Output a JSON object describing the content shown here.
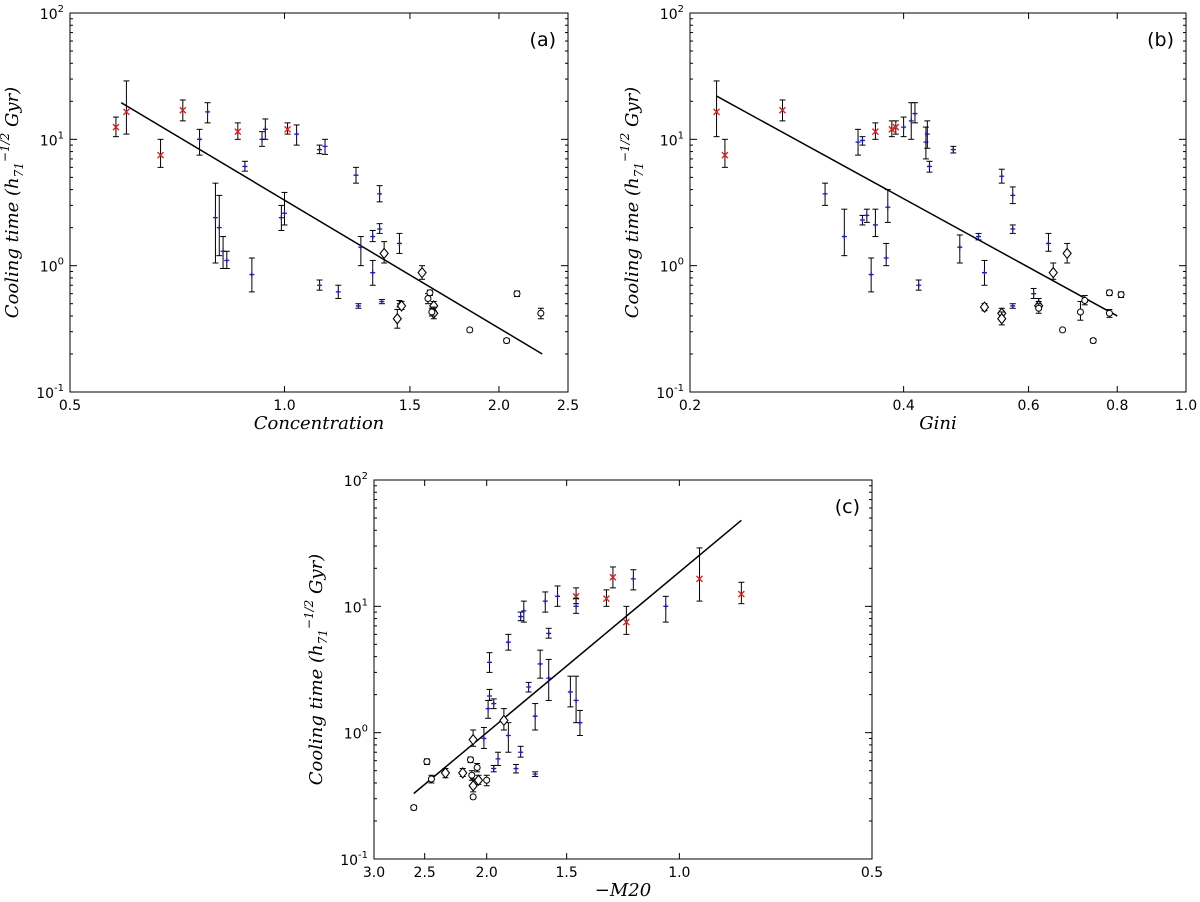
{
  "chart_data": [
    {
      "type": "scatter",
      "panel_label": "(a)",
      "xlabel": "Concentration",
      "ylabel": "Cooling time (h71^-1/2 Gyr)",
      "xscale": "log",
      "yscale": "log",
      "xlim": [
        0.5,
        2.5
      ],
      "ylim": [
        0.1,
        100
      ],
      "xticks": [
        0.5,
        1.0,
        1.5,
        2.0,
        2.5
      ],
      "xtick_labels": [
        "0.5",
        "1.0",
        "1.5",
        "2.0",
        "2.5"
      ],
      "ytick_labels": [
        "10-1",
        "100",
        "101",
        "102"
      ],
      "fit_line": [
        [
          0.59,
          19.5
        ],
        [
          2.3,
          0.2
        ]
      ],
      "series": [
        {
          "marker": "x",
          "color": "#d62728",
          "points": [
            [
              0.58,
              12.5,
              10.5,
              15
            ],
            [
              0.6,
              16.5,
              11,
              29
            ],
            [
              0.67,
              7.5,
              6,
              10
            ],
            [
              0.72,
              17,
              14,
              20.5
            ],
            [
              0.86,
              11.5,
              10,
              13.5
            ],
            [
              1.01,
              12,
              11,
              13.5
            ]
          ]
        },
        {
          "marker": "+",
          "color": "#1f1f9f",
          "points": [
            [
              0.76,
              10,
              7.5,
              12
            ],
            [
              0.78,
              16.5,
              13.5,
              19.5
            ],
            [
              0.88,
              6.1,
              5.6,
              6.7
            ],
            [
              0.93,
              10,
              8.8,
              11.5
            ],
            [
              0.94,
              12,
              10,
              14.5
            ],
            [
              1.04,
              11,
              9,
              13
            ],
            [
              1.12,
              8.3,
              7.7,
              9
            ],
            [
              1.14,
              8.8,
              7.6,
              10
            ],
            [
              1.26,
              5.2,
              4.5,
              6
            ],
            [
              1.36,
              3.7,
              3.2,
              4.3
            ],
            [
              1.33,
              1.7,
              1.55,
              1.9
            ],
            [
              1.36,
              1.95,
              1.8,
              2.15
            ],
            [
              1.45,
              1.5,
              1.25,
              1.8
            ],
            [
              0.8,
              2.4,
              1.05,
              4.5
            ],
            [
              0.81,
              2.0,
              1.2,
              3.6
            ],
            [
              0.82,
              1.3,
              0.95,
              1.7
            ],
            [
              0.83,
              1.1,
              0.95,
              1.3
            ],
            [
              0.9,
              0.85,
              0.62,
              1.15
            ],
            [
              0.99,
              2.4,
              1.9,
              3.0
            ],
            [
              1.0,
              2.6,
              2.1,
              3.8
            ],
            [
              1.12,
              0.7,
              0.64,
              0.77
            ],
            [
              1.19,
              0.62,
              0.55,
              0.7
            ],
            [
              1.27,
              0.48,
              0.46,
              0.5
            ],
            [
              1.28,
              1.4,
              1.0,
              1.7
            ],
            [
              1.33,
              0.88,
              0.7,
              1.1
            ],
            [
              1.37,
              0.52,
              0.5,
              0.54
            ],
            [
              1.45,
              0.5,
              0.47,
              0.53
            ]
          ]
        },
        {
          "marker": "diamond",
          "color": "#000000",
          "points": [
            [
              1.38,
              1.25,
              1.05,
              1.55
            ],
            [
              1.44,
              0.38,
              0.32,
              0.45
            ],
            [
              1.46,
              0.48,
              0.45,
              0.52
            ],
            [
              1.56,
              0.88,
              0.78,
              1.0
            ],
            [
              1.62,
              0.48,
              0.44,
              0.52
            ],
            [
              1.62,
              0.42,
              0.38,
              0.47
            ]
          ]
        },
        {
          "marker": "circle",
          "color": "#000000",
          "points": [
            [
              1.59,
              0.55,
              0.5,
              0.6
            ],
            [
              1.6,
              0.61,
              0.58,
              0.64
            ],
            [
              1.61,
              0.43,
              0.4,
              0.46
            ],
            [
              1.82,
              0.31,
              0.3,
              0.32
            ],
            [
              2.05,
              0.255,
              0.245,
              0.265
            ],
            [
              2.12,
              0.6,
              0.57,
              0.63
            ],
            [
              2.29,
              0.42,
              0.38,
              0.46
            ]
          ]
        }
      ]
    },
    {
      "type": "scatter",
      "panel_label": "(b)",
      "xlabel": "Gini",
      "ylabel": "Cooling time (h71^-1/2 Gyr)",
      "xscale": "log",
      "yscale": "log",
      "xlim": [
        0.2,
        1.0
      ],
      "ylim": [
        0.1,
        100
      ],
      "xticks": [
        0.2,
        0.4,
        0.6,
        0.8,
        1.0
      ],
      "xtick_labels": [
        "0.2",
        "0.4",
        "0.6",
        "0.8",
        "1.0"
      ],
      "ytick_labels": [
        "10-1",
        "100",
        "101",
        "102"
      ],
      "fit_line": [
        [
          0.218,
          22
        ],
        [
          0.8,
          0.4
        ]
      ],
      "series": [
        {
          "marker": "x",
          "color": "#d62728",
          "points": [
            [
              0.218,
              16.5,
              10.5,
              29
            ],
            [
              0.224,
              7.5,
              6,
              10
            ],
            [
              0.27,
              17,
              14,
              20.5
            ],
            [
              0.365,
              11.5,
              10,
              13.5
            ],
            [
              0.385,
              12,
              10.5,
              14
            ],
            [
              0.39,
              12.5,
              11,
              14
            ]
          ]
        },
        {
          "marker": "+",
          "color": "#1f1f9f",
          "points": [
            [
              0.31,
              3.7,
              3.0,
              4.5
            ],
            [
              0.33,
              1.7,
              1.2,
              2.8
            ],
            [
              0.345,
              9.5,
              7.5,
              12
            ],
            [
              0.35,
              2.3,
              2.1,
              2.5
            ],
            [
              0.35,
              9.8,
              9.0,
              10.5
            ],
            [
              0.355,
              2.5,
              2.2,
              2.8
            ],
            [
              0.36,
              0.85,
              0.62,
              1.15
            ],
            [
              0.365,
              2.1,
              1.7,
              2.8
            ],
            [
              0.378,
              1.15,
              1.0,
              1.5
            ],
            [
              0.38,
              2.9,
              2.2,
              4.0
            ],
            [
              0.4,
              12.5,
              10.5,
              15
            ],
            [
              0.41,
              14,
              10,
              19.5
            ],
            [
              0.415,
              16,
              13.5,
              19.5
            ],
            [
              0.42,
              0.7,
              0.64,
              0.77
            ],
            [
              0.43,
              9.5,
              7,
              12.5
            ],
            [
              0.432,
              11,
              8.5,
              14
            ],
            [
              0.435,
              6.1,
              5.5,
              6.7
            ],
            [
              0.47,
              8.3,
              7.8,
              8.8
            ],
            [
              0.48,
              1.4,
              1.05,
              1.75
            ],
            [
              0.51,
              1.7,
              1.6,
              1.8
            ],
            [
              0.52,
              0.88,
              0.7,
              1.1
            ],
            [
              0.55,
              5.1,
              4.5,
              5.8
            ],
            [
              0.57,
              3.6,
              3.1,
              4.2
            ],
            [
              0.57,
              1.95,
              1.8,
              2.1
            ],
            [
              0.57,
              0.48,
              0.46,
              0.5
            ],
            [
              0.61,
              0.6,
              0.55,
              0.66
            ],
            [
              0.62,
              0.52,
              0.49,
              0.55
            ],
            [
              0.64,
              1.5,
              1.3,
              1.8
            ]
          ]
        },
        {
          "marker": "diamond",
          "color": "#000000",
          "points": [
            [
              0.52,
              0.47,
              0.44,
              0.5
            ],
            [
              0.55,
              0.42,
              0.38,
              0.46
            ],
            [
              0.55,
              0.38,
              0.34,
              0.43
            ],
            [
              0.62,
              0.48,
              0.45,
              0.52
            ],
            [
              0.65,
              0.88,
              0.78,
              1.05
            ],
            [
              0.68,
              1.25,
              1.05,
              1.5
            ]
          ]
        },
        {
          "marker": "circle",
          "color": "#000000",
          "points": [
            [
              0.62,
              0.46,
              0.42,
              0.5
            ],
            [
              0.67,
              0.31,
              0.3,
              0.32
            ],
            [
              0.71,
              0.43,
              0.37,
              0.52
            ],
            [
              0.72,
              0.53,
              0.49,
              0.58
            ],
            [
              0.74,
              0.255,
              0.245,
              0.265
            ],
            [
              0.78,
              0.61,
              0.58,
              0.64
            ],
            [
              0.78,
              0.42,
              0.39,
              0.45
            ],
            [
              0.81,
              0.59,
              0.56,
              0.62
            ]
          ]
        }
      ]
    },
    {
      "type": "scatter",
      "panel_label": "(c)",
      "xlabel": "−M20",
      "ylabel": "Cooling time (h71^-1/2 Gyr)",
      "xscale": "log",
      "yscale": "log",
      "xlim": [
        3.0,
        0.5
      ],
      "ylim": [
        0.1,
        100
      ],
      "xticks": [
        3.0,
        2.5,
        2.0,
        1.5,
        1.0,
        0.5
      ],
      "xtick_labels": [
        "3.0",
        "2.5",
        "2.0",
        "1.5",
        "1.0",
        "0.5"
      ],
      "ytick_labels": [
        "10-1",
        "100",
        "101",
        "102"
      ],
      "fit_line": [
        [
          2.6,
          0.33
        ],
        [
          0.8,
          48
        ]
      ],
      "series": [
        {
          "marker": "x",
          "color": "#d62728",
          "points": [
            [
              0.8,
              12.5,
              10.5,
              15.5
            ],
            [
              0.93,
              16.5,
              11,
              29
            ],
            [
              1.21,
              7.5,
              6,
              10
            ],
            [
              1.27,
              17,
              14,
              20.5
            ],
            [
              1.3,
              11.5,
              10,
              13.5
            ],
            [
              1.45,
              12,
              10.5,
              14
            ]
          ]
        },
        {
          "marker": "+",
          "color": "#1f1f9f",
          "points": [
            [
              1.05,
              10,
              7.5,
              12
            ],
            [
              1.18,
              16.5,
              13.5,
              19.5
            ],
            [
              1.45,
              10,
              8.8,
              11.5
            ],
            [
              1.55,
              12,
              10,
              14.5
            ],
            [
              1.62,
              11,
              9,
              13
            ],
            [
              1.75,
              9.2,
              7.5,
              11
            ],
            [
              1.77,
              8.3,
              7.7,
              9
            ],
            [
              1.6,
              6.1,
              5.6,
              6.7
            ],
            [
              1.85,
              5.2,
              4.5,
              6
            ],
            [
              1.98,
              3.6,
              3.0,
              4.3
            ],
            [
              1.65,
              3.5,
              2.7,
              4.5
            ],
            [
              1.6,
              2.7,
              1.8,
              3.8
            ],
            [
              1.72,
              2.3,
              2.1,
              2.5
            ],
            [
              1.48,
              2.1,
              1.6,
              2.8
            ],
            [
              1.45,
              1.8,
              1.2,
              2.8
            ],
            [
              1.43,
              1.2,
              0.95,
              1.5
            ],
            [
              1.68,
              1.35,
              1.05,
              1.7
            ],
            [
              1.98,
              1.95,
              1.8,
              2.2
            ],
            [
              1.95,
              1.7,
              1.55,
              1.85
            ],
            [
              1.99,
              1.55,
              1.3,
              1.8
            ],
            [
              2.02,
              0.9,
              0.75,
              1.1
            ],
            [
              1.85,
              0.95,
              0.7,
              1.2
            ],
            [
              1.77,
              0.7,
              0.64,
              0.78
            ],
            [
              1.92,
              0.62,
              0.55,
              0.7
            ],
            [
              1.95,
              0.52,
              0.49,
              0.55
            ],
            [
              1.8,
              0.52,
              0.48,
              0.56
            ],
            [
              1.68,
              0.47,
              0.45,
              0.49
            ]
          ]
        },
        {
          "marker": "diamond",
          "color": "#000000",
          "points": [
            [
              1.88,
              1.25,
              1.05,
              1.55
            ],
            [
              2.1,
              0.88,
              0.78,
              1.05
            ],
            [
              2.32,
              0.48,
              0.44,
              0.52
            ],
            [
              2.18,
              0.48,
              0.45,
              0.52
            ],
            [
              2.1,
              0.38,
              0.34,
              0.43
            ],
            [
              2.06,
              0.42,
              0.39,
              0.46
            ]
          ]
        },
        {
          "marker": "circle",
          "color": "#000000",
          "points": [
            [
              2.6,
              0.255,
              0.245,
              0.265
            ],
            [
              2.48,
              0.59,
              0.56,
              0.62
            ],
            [
              2.44,
              0.43,
              0.4,
              0.46
            ],
            [
              2.12,
              0.61,
              0.58,
              0.64
            ],
            [
              2.07,
              0.53,
              0.49,
              0.57
            ],
            [
              2.11,
              0.46,
              0.42,
              0.5
            ],
            [
              2.1,
              0.31,
              0.3,
              0.32
            ],
            [
              2.0,
              0.42,
              0.38,
              0.46
            ]
          ]
        }
      ]
    }
  ]
}
